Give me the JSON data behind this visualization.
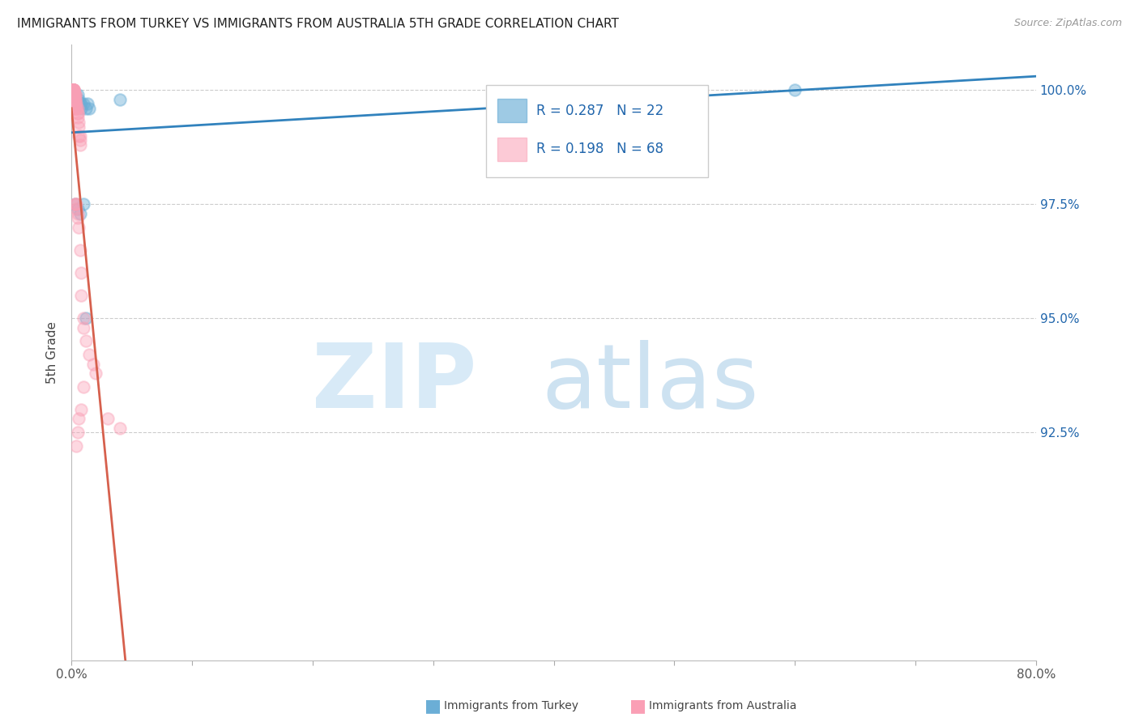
{
  "title": "IMMIGRANTS FROM TURKEY VS IMMIGRANTS FROM AUSTRALIA 5TH GRADE CORRELATION CHART",
  "source": "Source: ZipAtlas.com",
  "ylabel": "5th Grade",
  "y_tick_labels": [
    "100.0%",
    "97.5%",
    "95.0%",
    "92.5%"
  ],
  "y_tick_values": [
    1.0,
    0.975,
    0.95,
    0.925
  ],
  "xlim": [
    0.0,
    0.8
  ],
  "ylim": [
    0.875,
    1.01
  ],
  "legend_r_turkey": "R = 0.287",
  "legend_n_turkey": "N = 22",
  "legend_r_australia": "R = 0.198",
  "legend_n_australia": "N = 68",
  "color_turkey": "#6baed6",
  "color_australia": "#fa9fb5",
  "color_trendline_turkey": "#3182bd",
  "color_trendline_australia": "#d6604d",
  "background_color": "#ffffff",
  "turkey_scatter_x": [
    0.001,
    0.002,
    0.003,
    0.003,
    0.004,
    0.005,
    0.006,
    0.006,
    0.007,
    0.008,
    0.008,
    0.01,
    0.012,
    0.013,
    0.015,
    0.003,
    0.005,
    0.007,
    0.01,
    0.012,
    0.6,
    0.04
  ],
  "turkey_scatter_y": [
    1.0,
    0.999,
    0.999,
    0.998,
    0.997,
    0.999,
    0.997,
    0.998,
    0.997,
    0.997,
    0.996,
    0.997,
    0.996,
    0.997,
    0.996,
    0.975,
    0.974,
    0.973,
    0.975,
    0.95,
    1.0,
    0.998
  ],
  "australia_scatter_x": [
    0.001,
    0.001,
    0.001,
    0.001,
    0.001,
    0.001,
    0.001,
    0.001,
    0.001,
    0.001,
    0.001,
    0.001,
    0.002,
    0.002,
    0.002,
    0.002,
    0.002,
    0.002,
    0.002,
    0.002,
    0.003,
    0.003,
    0.003,
    0.003,
    0.003,
    0.003,
    0.004,
    0.004,
    0.004,
    0.004,
    0.005,
    0.005,
    0.005,
    0.005,
    0.006,
    0.006,
    0.006,
    0.007,
    0.007,
    0.007,
    0.001,
    0.001,
    0.002,
    0.002,
    0.002,
    0.003,
    0.003,
    0.004,
    0.004,
    0.005,
    0.005,
    0.006,
    0.007,
    0.008,
    0.008,
    0.01,
    0.01,
    0.012,
    0.015,
    0.018,
    0.02,
    0.01,
    0.008,
    0.006,
    0.005,
    0.004,
    0.03,
    0.04
  ],
  "australia_scatter_y": [
    1.0,
    1.0,
    1.0,
    1.0,
    1.0,
    1.0,
    1.0,
    1.0,
    1.0,
    1.0,
    1.0,
    1.0,
    1.0,
    1.0,
    1.0,
    1.0,
    0.999,
    0.999,
    0.999,
    0.999,
    0.999,
    0.999,
    0.998,
    0.998,
    0.997,
    0.997,
    0.997,
    0.996,
    0.996,
    0.996,
    0.996,
    0.995,
    0.995,
    0.994,
    0.993,
    0.992,
    0.99,
    0.99,
    0.989,
    0.988,
    0.999,
    0.998,
    0.998,
    0.997,
    0.996,
    0.975,
    0.975,
    0.975,
    0.974,
    0.973,
    0.972,
    0.97,
    0.965,
    0.96,
    0.955,
    0.95,
    0.948,
    0.945,
    0.942,
    0.94,
    0.938,
    0.935,
    0.93,
    0.928,
    0.925,
    0.922,
    0.928,
    0.926
  ]
}
